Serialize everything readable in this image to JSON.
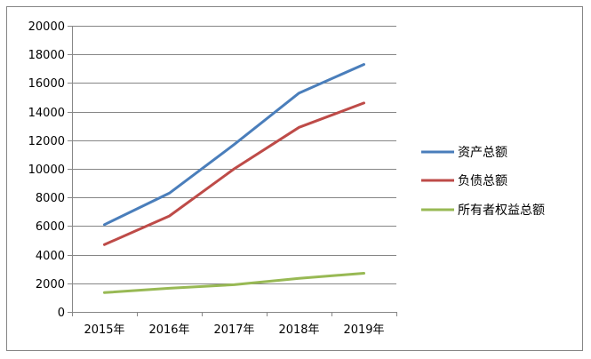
{
  "chart_data": {
    "type": "line",
    "title": "",
    "xlabel": "",
    "ylabel": "",
    "categories": [
      "2015年",
      "2016年",
      "2017年",
      "2018年",
      "2019年"
    ],
    "ylim": [
      0,
      20000
    ],
    "yticks": [
      0,
      2000,
      4000,
      6000,
      8000,
      10000,
      12000,
      14000,
      16000,
      18000,
      20000
    ],
    "grid": true,
    "legend_position": "right",
    "series": [
      {
        "name": "资产总额",
        "color": "#4a7ebb",
        "values": [
          6100,
          8300,
          11700,
          15300,
          17300
        ]
      },
      {
        "name": "负债总额",
        "color": "#be4b48",
        "values": [
          4700,
          6700,
          10000,
          12900,
          14600
        ]
      },
      {
        "name": "所有者权益总额",
        "color": "#98b954",
        "values": [
          1350,
          1650,
          1900,
          2350,
          2700
        ]
      }
    ]
  }
}
